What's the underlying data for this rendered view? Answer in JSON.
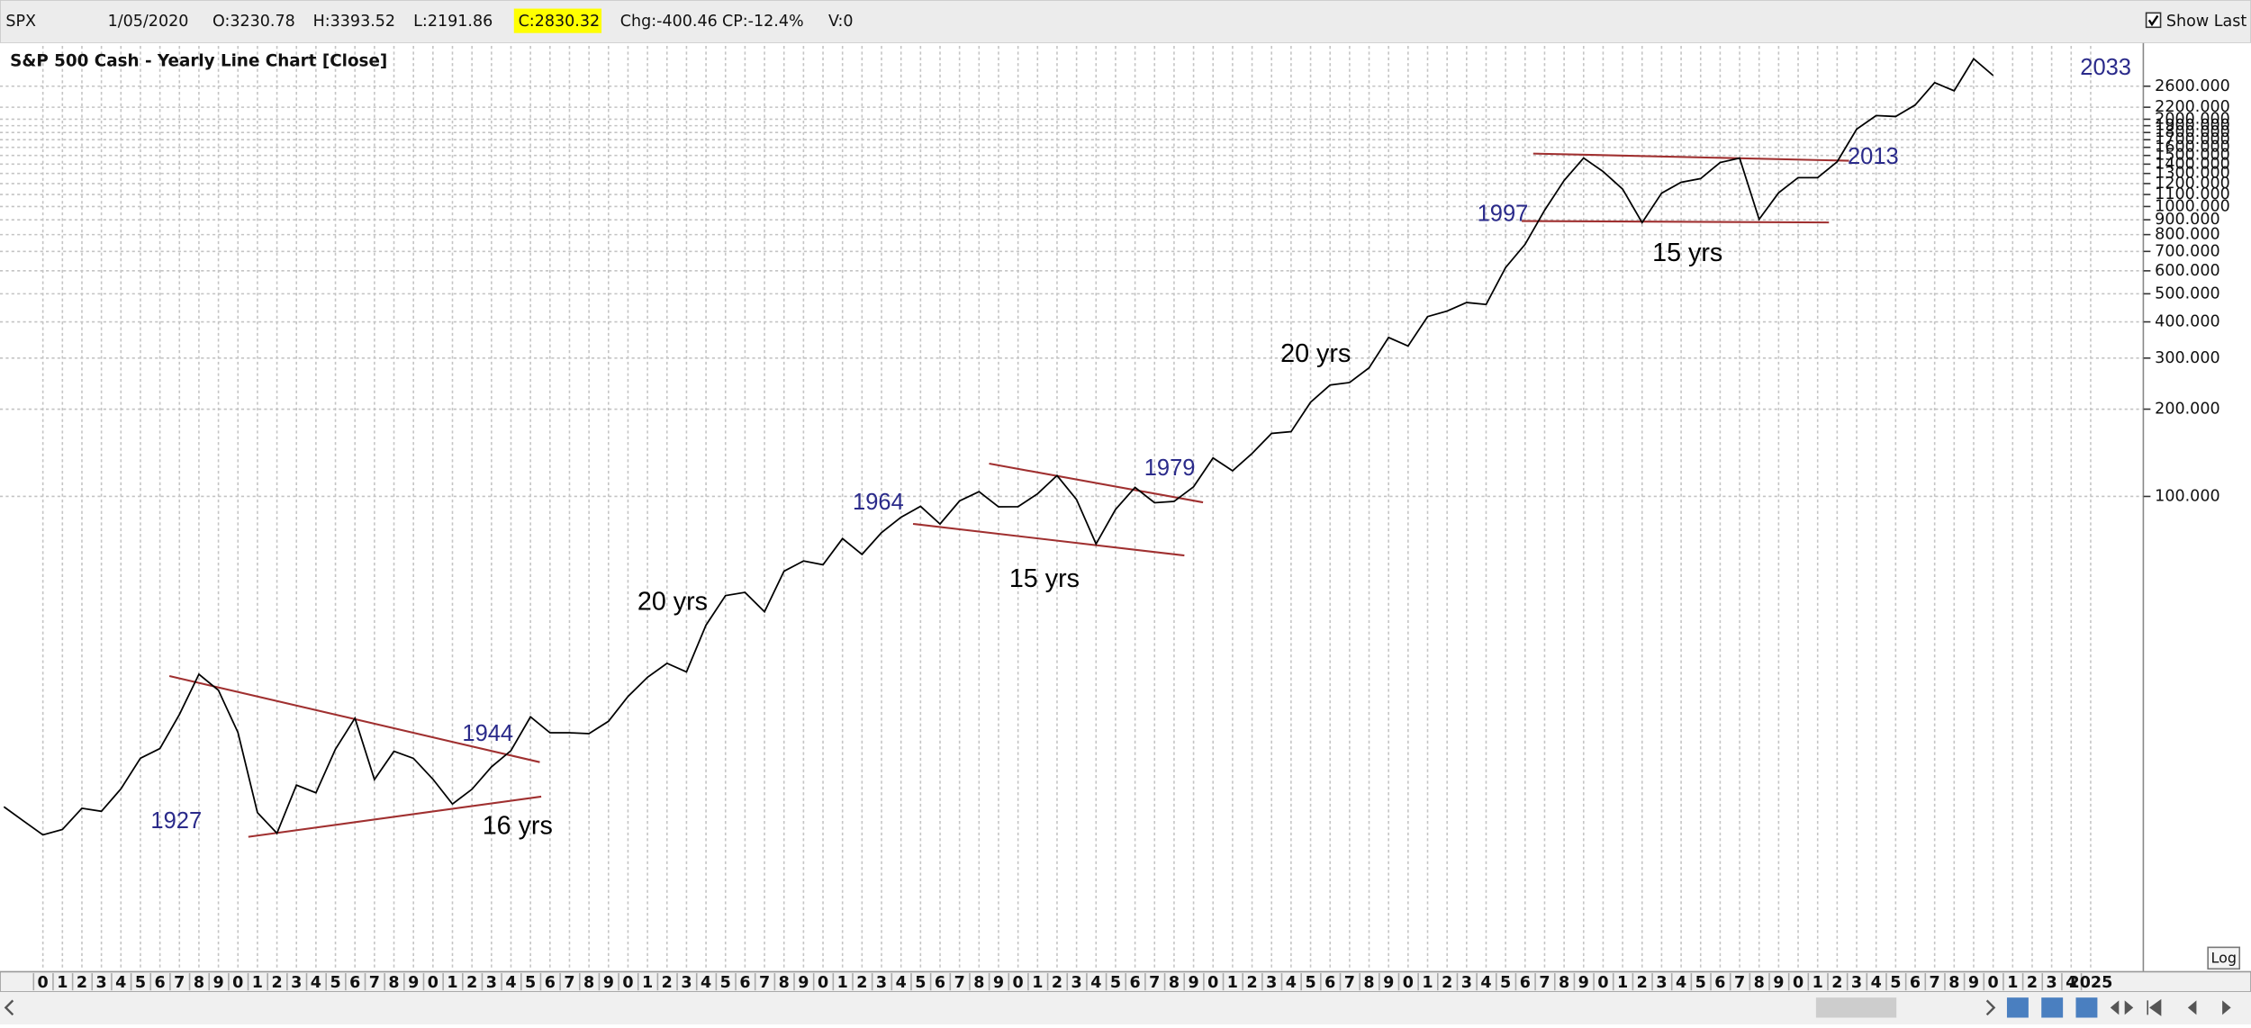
{
  "toolbar": {
    "symbol": "SPX",
    "date": "1/05/2020",
    "open": "O:3230.78",
    "high": "H:3393.52",
    "low": "L:2191.86",
    "close": "C:2830.32",
    "change": "Chg:-400.46",
    "change_percent": "CP:-12.4%",
    "volume": "V:0",
    "show_last": "Show Last",
    "log_button": "Log"
  },
  "chart_data": {
    "type": "line",
    "title": "S&P 500 Cash - Yearly Line Chart [Close]",
    "color": "#000000",
    "log_scale": true,
    "grid": true,
    "x": [
      1918,
      1919,
      1920,
      1921,
      1922,
      1923,
      1924,
      1925,
      1926,
      1927,
      1928,
      1929,
      1930,
      1931,
      1932,
      1933,
      1934,
      1935,
      1936,
      1937,
      1938,
      1939,
      1940,
      1941,
      1942,
      1943,
      1944,
      1945,
      1946,
      1947,
      1948,
      1949,
      1950,
      1951,
      1952,
      1953,
      1954,
      1955,
      1956,
      1957,
      1958,
      1959,
      1960,
      1961,
      1962,
      1963,
      1964,
      1965,
      1966,
      1967,
      1968,
      1969,
      1970,
      1971,
      1972,
      1973,
      1974,
      1975,
      1976,
      1977,
      1978,
      1979,
      1980,
      1981,
      1982,
      1983,
      1984,
      1985,
      1986,
      1987,
      1988,
      1989,
      1990,
      1991,
      1992,
      1993,
      1994,
      1995,
      1996,
      1997,
      1998,
      1999,
      2000,
      2001,
      2002,
      2003,
      2004,
      2005,
      2006,
      2007,
      2008,
      2009,
      2010,
      2011,
      2012,
      2013,
      2014,
      2015,
      2016,
      2017,
      2018,
      2019,
      2020
    ],
    "values": [
      8.5,
      7.6,
      6.8,
      7.1,
      8.4,
      8.2,
      9.8,
      12.5,
      13.5,
      17.7,
      24.35,
      21.45,
      15.34,
      8.12,
      6.89,
      10.1,
      9.5,
      13.43,
      17.18,
      10.55,
      13.21,
      12.49,
      10.58,
      8.69,
      9.77,
      11.67,
      13.28,
      17.36,
      15.3,
      15.3,
      15.2,
      16.76,
      20.41,
      23.77,
      26.57,
      24.81,
      35.98,
      45.48,
      46.67,
      39.99,
      55.21,
      59.89,
      58.11,
      71.55,
      63.1,
      75.02,
      84.75,
      92.43,
      80.33,
      96.47,
      103.86,
      92.06,
      92.15,
      102.09,
      118.05,
      97.55,
      68.56,
      90.19,
      107.46,
      95.1,
      96.11,
      107.94,
      135.76,
      122.55,
      140.64,
      164.93,
      167.24,
      211.28,
      242.17,
      247.08,
      277.72,
      353.4,
      330.22,
      417.09,
      435.71,
      466.45,
      459.27,
      615.93,
      740.74,
      970.43,
      1229.23,
      1469.25,
      1320.28,
      1148.08,
      879.82,
      1111.92,
      1211.92,
      1248.29,
      1418.3,
      1468.36,
      903.25,
      1115.1,
      1257.64,
      1257.6,
      1426.19,
      1848.36,
      2058.9,
      2043.94,
      2238.83,
      2673.61,
      2506.85,
      3230.78,
      2830.32
    ],
    "xlim": [
      1917.8,
      2027.7
    ],
    "ylim": [
      2.32,
      3580
    ],
    "xticks": [
      {
        "value": 1920,
        "label": "0"
      },
      {
        "value": 1921,
        "label": "1"
      },
      {
        "value": 1922,
        "label": "2"
      },
      {
        "value": 1923,
        "label": "3"
      },
      {
        "value": 1924,
        "label": "4"
      },
      {
        "value": 1925,
        "label": "5"
      },
      {
        "value": 1926,
        "label": "6"
      },
      {
        "value": 1927,
        "label": "7"
      },
      {
        "value": 1928,
        "label": "8"
      },
      {
        "value": 1929,
        "label": "9"
      },
      {
        "value": 1930,
        "label": "0"
      },
      {
        "value": 1931,
        "label": "1"
      },
      {
        "value": 1932,
        "label": "2"
      },
      {
        "value": 1933,
        "label": "3"
      },
      {
        "value": 1934,
        "label": "4"
      },
      {
        "value": 1935,
        "label": "5"
      },
      {
        "value": 1936,
        "label": "6"
      },
      {
        "value": 1937,
        "label": "7"
      },
      {
        "value": 1938,
        "label": "8"
      },
      {
        "value": 1939,
        "label": "9"
      },
      {
        "value": 1940,
        "label": "0"
      },
      {
        "value": 1941,
        "label": "1"
      },
      {
        "value": 1942,
        "label": "2"
      },
      {
        "value": 1943,
        "label": "3"
      },
      {
        "value": 1944,
        "label": "4"
      },
      {
        "value": 1945,
        "label": "5"
      },
      {
        "value": 1946,
        "label": "6"
      },
      {
        "value": 1947,
        "label": "7"
      },
      {
        "value": 1948,
        "label": "8"
      },
      {
        "value": 1949,
        "label": "9"
      },
      {
        "value": 1950,
        "label": "0"
      },
      {
        "value": 1951,
        "label": "1"
      },
      {
        "value": 1952,
        "label": "2"
      },
      {
        "value": 1953,
        "label": "3"
      },
      {
        "value": 1954,
        "label": "4"
      },
      {
        "value": 1955,
        "label": "5"
      },
      {
        "value": 1956,
        "label": "6"
      },
      {
        "value": 1957,
        "label": "7"
      },
      {
        "value": 1958,
        "label": "8"
      },
      {
        "value": 1959,
        "label": "9"
      },
      {
        "value": 1960,
        "label": "0"
      },
      {
        "value": 1961,
        "label": "1"
      },
      {
        "value": 1962,
        "label": "2"
      },
      {
        "value": 1963,
        "label": "3"
      },
      {
        "value": 1964,
        "label": "4"
      },
      {
        "value": 1965,
        "label": "5"
      },
      {
        "value": 1966,
        "label": "6"
      },
      {
        "value": 1967,
        "label": "7"
      },
      {
        "value": 1968,
        "label": "8"
      },
      {
        "value": 1969,
        "label": "9"
      },
      {
        "value": 1970,
        "label": "0"
      },
      {
        "value": 1971,
        "label": "1"
      },
      {
        "value": 1972,
        "label": "2"
      },
      {
        "value": 1973,
        "label": "3"
      },
      {
        "value": 1974,
        "label": "4"
      },
      {
        "value": 1975,
        "label": "5"
      },
      {
        "value": 1976,
        "label": "6"
      },
      {
        "value": 1977,
        "label": "7"
      },
      {
        "value": 1978,
        "label": "8"
      },
      {
        "value": 1979,
        "label": "9"
      },
      {
        "value": 1980,
        "label": "0"
      },
      {
        "value": 1981,
        "label": "1"
      },
      {
        "value": 1982,
        "label": "2"
      },
      {
        "value": 1983,
        "label": "3"
      },
      {
        "value": 1984,
        "label": "4"
      },
      {
        "value": 1985,
        "label": "5"
      },
      {
        "value": 1986,
        "label": "6"
      },
      {
        "value": 1987,
        "label": "7"
      },
      {
        "value": 1988,
        "label": "8"
      },
      {
        "value": 1989,
        "label": "9"
      },
      {
        "value": 1990,
        "label": "0"
      },
      {
        "value": 1991,
        "label": "1"
      },
      {
        "value": 1992,
        "label": "2"
      },
      {
        "value": 1993,
        "label": "3"
      },
      {
        "value": 1994,
        "label": "4"
      },
      {
        "value": 1995,
        "label": "5"
      },
      {
        "value": 1996,
        "label": "6"
      },
      {
        "value": 1997,
        "label": "7"
      },
      {
        "value": 1998,
        "label": "8"
      },
      {
        "value": 1999,
        "label": "9"
      },
      {
        "value": 2000,
        "label": "0"
      },
      {
        "value": 2001,
        "label": "1"
      },
      {
        "value": 2002,
        "label": "2"
      },
      {
        "value": 2003,
        "label": "3"
      },
      {
        "value": 2004,
        "label": "4"
      },
      {
        "value": 2005,
        "label": "5"
      },
      {
        "value": 2006,
        "label": "6"
      },
      {
        "value": 2007,
        "label": "7"
      },
      {
        "value": 2008,
        "label": "8"
      },
      {
        "value": 2009,
        "label": "9"
      },
      {
        "value": 2010,
        "label": "0"
      },
      {
        "value": 2011,
        "label": "1"
      },
      {
        "value": 2012,
        "label": "2"
      },
      {
        "value": 2013,
        "label": "3"
      },
      {
        "value": 2014,
        "label": "4"
      },
      {
        "value": 2015,
        "label": "5"
      },
      {
        "value": 2016,
        "label": "6"
      },
      {
        "value": 2017,
        "label": "7"
      },
      {
        "value": 2018,
        "label": "8"
      },
      {
        "value": 2019,
        "label": "9"
      },
      {
        "value": 2020,
        "label": "0"
      },
      {
        "value": 2021,
        "label": "1"
      },
      {
        "value": 2022,
        "label": "2"
      },
      {
        "value": 2023,
        "label": "3"
      },
      {
        "value": 2024,
        "label": "4"
      },
      {
        "value": 2025,
        "label": "2025"
      }
    ],
    "yticks": [
      {
        "value": 2600,
        "label": "2600.000"
      },
      {
        "value": 2200,
        "label": "2200.000"
      },
      {
        "value": 2000,
        "label": "2000.000"
      },
      {
        "value": 1900,
        "label": "1900.000"
      },
      {
        "value": 1800,
        "label": "1800.000"
      },
      {
        "value": 1700,
        "label": "1700.000"
      },
      {
        "value": 1600,
        "label": "1600.000"
      },
      {
        "value": 1500,
        "label": "1500.000"
      },
      {
        "value": 1400,
        "label": "1400.000"
      },
      {
        "value": 1300,
        "label": "1300.000"
      },
      {
        "value": 1200,
        "label": "1200.000"
      },
      {
        "value": 1100,
        "label": "1100.000"
      },
      {
        "value": 1000,
        "label": "1000.000"
      },
      {
        "value": 900,
        "label": "900.000"
      },
      {
        "value": 800,
        "label": "800.000"
      },
      {
        "value": 700,
        "label": "700.000"
      },
      {
        "value": 600,
        "label": "600.000"
      },
      {
        "value": 500,
        "label": "500.000"
      },
      {
        "value": 400,
        "label": "400.000"
      },
      {
        "value": 300,
        "label": "300.000"
      },
      {
        "value": 200,
        "label": "200.000"
      },
      {
        "value": 100,
        "label": "100.000"
      }
    ],
    "annotations": [
      "1927",
      "1944",
      "1964",
      "1979",
      "1997",
      "2013",
      "2033",
      "16 yrs",
      "20 yrs",
      "15 yrs",
      "20 yrs",
      "15 yrs"
    ]
  }
}
